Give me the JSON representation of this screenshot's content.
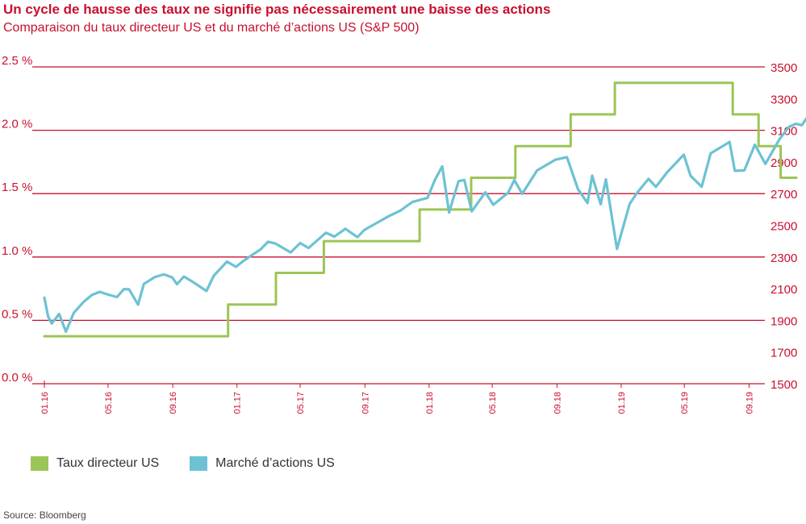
{
  "header": {
    "title": "Un cycle de hausse des taux ne signifie pas nécessairement une baisse des actions",
    "subtitle": "Comparaison du taux directeur US et du marché d’actions US (S&P 500)"
  },
  "source": "Source: Bloomberg",
  "colors": {
    "accent": "#c8102e",
    "rate": "#9bc556",
    "sp500": "#6cc2d4",
    "grid": "#c8102e"
  },
  "chart_data": {
    "type": "line",
    "grid": true,
    "legend_position": "bottom-left",
    "left_axis": {
      "range": [
        0,
        2.5
      ],
      "ticks": [
        0,
        0.5,
        1.0,
        1.5,
        2.0,
        2.5
      ],
      "tick_labels": [
        "0.0 %",
        "0.5 %",
        "1.0 %",
        "1.5 %",
        "2.0 %",
        "2.5 %"
      ]
    },
    "right_axis": {
      "range": [
        1500,
        3500
      ],
      "ticks": [
        1500,
        1700,
        1900,
        2100,
        2300,
        2500,
        2700,
        2900,
        3100,
        3300,
        3500
      ],
      "tick_labels": [
        "1500",
        "1700",
        "1900",
        "2100",
        "2300",
        "2500",
        "2700",
        "2900",
        "3100",
        "3300",
        "3500"
      ]
    },
    "x_axis": {
      "range": [
        "2016-01",
        "2019-10"
      ],
      "ticks": [
        "2016-01",
        "2016-05",
        "2016-09",
        "2017-01",
        "2017-05",
        "2017-09",
        "2018-01",
        "2018-05",
        "2018-09",
        "2019-01",
        "2019-05",
        "2019-09"
      ],
      "tick_labels": [
        "01.16",
        "05.16",
        "09.16",
        "01.17",
        "05.17",
        "09.17",
        "01.18",
        "05.18",
        "09.18",
        "01.19",
        "05.19",
        "09.19"
      ]
    },
    "series": [
      {
        "name": "Taux directeur US",
        "axis": "left",
        "color": "#9bc556",
        "step": true,
        "points": [
          [
            "2016-01-01",
            0.375
          ],
          [
            "2016-12-15",
            0.625
          ],
          [
            "2017-03-16",
            0.875
          ],
          [
            "2017-06-15",
            1.125
          ],
          [
            "2017-12-14",
            1.375
          ],
          [
            "2018-03-22",
            1.625
          ],
          [
            "2018-06-14",
            1.875
          ],
          [
            "2018-09-27",
            2.125
          ],
          [
            "2018-12-20",
            2.375
          ],
          [
            "2019-08-01",
            2.125
          ],
          [
            "2019-09-19",
            1.875
          ],
          [
            "2019-10-31",
            1.625
          ],
          [
            "2019-11-30",
            1.625
          ]
        ]
      },
      {
        "name": "Marché d’actions US",
        "axis": "right",
        "color": "#6cc2d4",
        "points": [
          [
            "2016-01-01",
            2043
          ],
          [
            "2016-01-08",
            1925
          ],
          [
            "2016-01-15",
            1880
          ],
          [
            "2016-01-29",
            1940
          ],
          [
            "2016-02-11",
            1829
          ],
          [
            "2016-02-26",
            1948
          ],
          [
            "2016-03-15",
            2015
          ],
          [
            "2016-03-31",
            2060
          ],
          [
            "2016-04-15",
            2080
          ],
          [
            "2016-04-29",
            2065
          ],
          [
            "2016-05-18",
            2047
          ],
          [
            "2016-05-31",
            2097
          ],
          [
            "2016-06-10",
            2096
          ],
          [
            "2016-06-27",
            2000
          ],
          [
            "2016-07-08",
            2130
          ],
          [
            "2016-07-29",
            2174
          ],
          [
            "2016-08-15",
            2190
          ],
          [
            "2016-08-31",
            2171
          ],
          [
            "2016-09-09",
            2128
          ],
          [
            "2016-09-22",
            2177
          ],
          [
            "2016-10-14",
            2132
          ],
          [
            "2016-11-04",
            2085
          ],
          [
            "2016-11-18",
            2182
          ],
          [
            "2016-12-13",
            2271
          ],
          [
            "2016-12-30",
            2238
          ],
          [
            "2017-01-13",
            2275
          ],
          [
            "2017-02-15",
            2349
          ],
          [
            "2017-03-01",
            2396
          ],
          [
            "2017-03-15",
            2385
          ],
          [
            "2017-04-13",
            2329
          ],
          [
            "2017-05-01",
            2388
          ],
          [
            "2017-05-17",
            2357
          ],
          [
            "2017-06-19",
            2453
          ],
          [
            "2017-07-05",
            2429
          ],
          [
            "2017-07-26",
            2478
          ],
          [
            "2017-08-18",
            2425
          ],
          [
            "2017-08-31",
            2471
          ],
          [
            "2017-09-20",
            2508
          ],
          [
            "2017-10-16",
            2557
          ],
          [
            "2017-11-08",
            2594
          ],
          [
            "2017-11-30",
            2647
          ],
          [
            "2017-12-29",
            2673
          ],
          [
            "2018-01-12",
            2786
          ],
          [
            "2018-01-26",
            2872
          ],
          [
            "2018-02-08",
            2581
          ],
          [
            "2018-02-26",
            2779
          ],
          [
            "2018-03-09",
            2786
          ],
          [
            "2018-03-23",
            2588
          ],
          [
            "2018-04-18",
            2708
          ],
          [
            "2018-05-03",
            2630
          ],
          [
            "2018-05-31",
            2705
          ],
          [
            "2018-06-12",
            2786
          ],
          [
            "2018-06-27",
            2699
          ],
          [
            "2018-07-25",
            2846
          ],
          [
            "2018-08-29",
            2914
          ],
          [
            "2018-09-20",
            2930
          ],
          [
            "2018-10-11",
            2728
          ],
          [
            "2018-10-29",
            2641
          ],
          [
            "2018-11-07",
            2813
          ],
          [
            "2018-11-23",
            2633
          ],
          [
            "2018-12-03",
            2790
          ],
          [
            "2018-12-24",
            2351
          ],
          [
            "2019-01-17",
            2635
          ],
          [
            "2019-01-31",
            2704
          ],
          [
            "2019-02-22",
            2793
          ],
          [
            "2019-03-08",
            2743
          ],
          [
            "2019-03-29",
            2834
          ],
          [
            "2019-04-30",
            2946
          ],
          [
            "2019-05-13",
            2812
          ],
          [
            "2019-06-03",
            2744
          ],
          [
            "2019-06-20",
            2954
          ],
          [
            "2019-07-26",
            3026
          ],
          [
            "2019-08-05",
            2844
          ],
          [
            "2019-08-23",
            2847
          ],
          [
            "2019-09-12",
            3009
          ],
          [
            "2019-10-02",
            2888
          ],
          [
            "2019-10-28",
            3039
          ],
          [
            "2019-11-15",
            3120
          ],
          [
            "2019-11-29",
            3141
          ],
          [
            "2019-12-10",
            3132
          ],
          [
            "2019-12-31",
            3231
          ]
        ]
      }
    ]
  }
}
